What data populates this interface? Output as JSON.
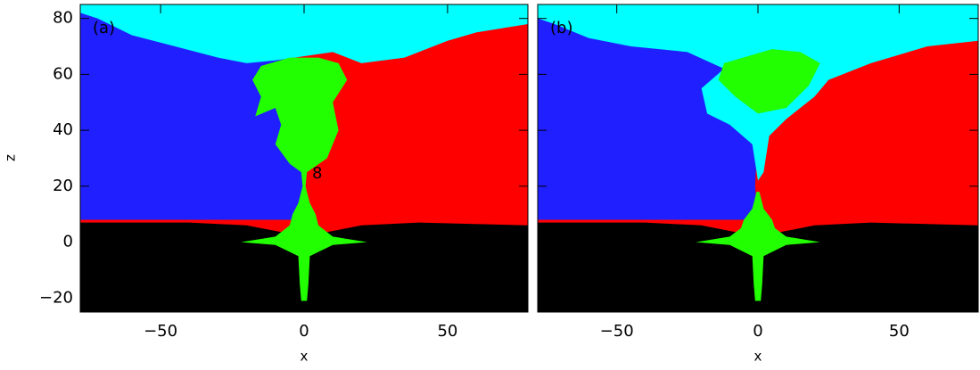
{
  "chart_data": [
    {
      "type": "map",
      "panel_label": "(a)",
      "annotation": "8",
      "xlabel": "x",
      "ylabel": "z",
      "xlim": [
        -78,
        78
      ],
      "ylim": [
        -25,
        85
      ],
      "xticks": [
        {
          "value": -50,
          "label": "−50"
        },
        0,
        50
      ],
      "yticks": [
        {
          "value": -20,
          "label": "−20"
        },
        0,
        20,
        40,
        60,
        80
      ]
    },
    {
      "type": "map",
      "panel_label": "(b)",
      "xlabel": "x",
      "xlim": [
        -78,
        78
      ],
      "ylim": [
        -25,
        85
      ],
      "xticks": [
        {
          "value": -50,
          "label": "−50"
        },
        0,
        50
      ],
      "yticks": [
        -20,
        0,
        20,
        40,
        60,
        80
      ]
    }
  ]
}
